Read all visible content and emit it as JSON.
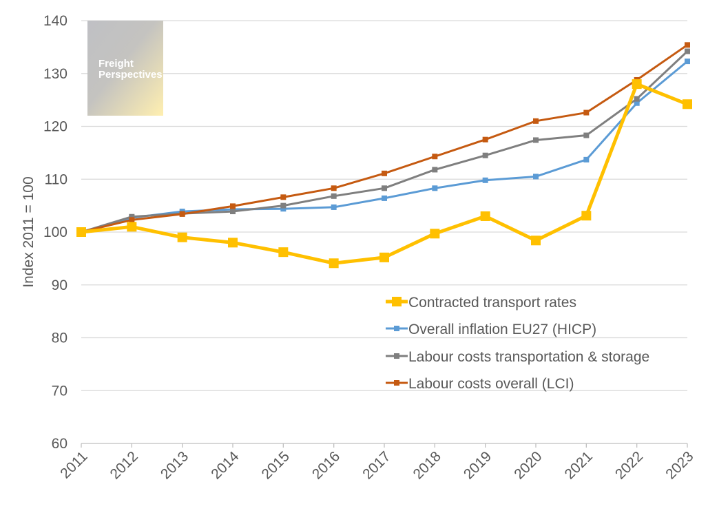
{
  "logo": {
    "line1": "Freight",
    "line2": "Perspectives"
  },
  "chart_data": {
    "type": "line",
    "title": "",
    "xlabel": "",
    "ylabel": "Index 2011 = 100",
    "ylim": [
      60,
      140
    ],
    "yticks": [
      60,
      70,
      80,
      90,
      100,
      110,
      120,
      130,
      140
    ],
    "grid": true,
    "legend_position": "bottom-right",
    "categories": [
      "2011",
      "2012",
      "2013",
      "2014",
      "2015",
      "2016",
      "2017",
      "2018",
      "2019",
      "2020",
      "2021",
      "2022",
      "2023"
    ],
    "series": [
      {
        "name": "Contracted transport rates",
        "color": "#FFC000",
        "values": [
          100,
          101.0,
          99.0,
          98.0,
          96.2,
          94.1,
          95.2,
          99.7,
          103.0,
          98.4,
          103.1,
          128.0,
          124.2
        ]
      },
      {
        "name": "Overall inflation EU27 (HICP)",
        "color": "#5B9BD5",
        "values": [
          100,
          102.7,
          103.9,
          104.3,
          104.4,
          104.7,
          106.4,
          108.3,
          109.8,
          110.5,
          113.7,
          124.4,
          132.3
        ]
      },
      {
        "name": "Labour costs transportation & storage",
        "color": "#7F7F7F",
        "values": [
          100,
          102.9,
          103.5,
          103.9,
          105.0,
          106.8,
          108.3,
          111.8,
          114.5,
          117.4,
          118.3,
          125.2,
          134.2
        ]
      },
      {
        "name": "Labour costs overall (LCI)",
        "color": "#C55A11",
        "values": [
          100,
          102.3,
          103.4,
          104.9,
          106.6,
          108.3,
          111.1,
          114.3,
          117.5,
          121.0,
          122.6,
          128.8,
          135.4
        ]
      }
    ]
  }
}
